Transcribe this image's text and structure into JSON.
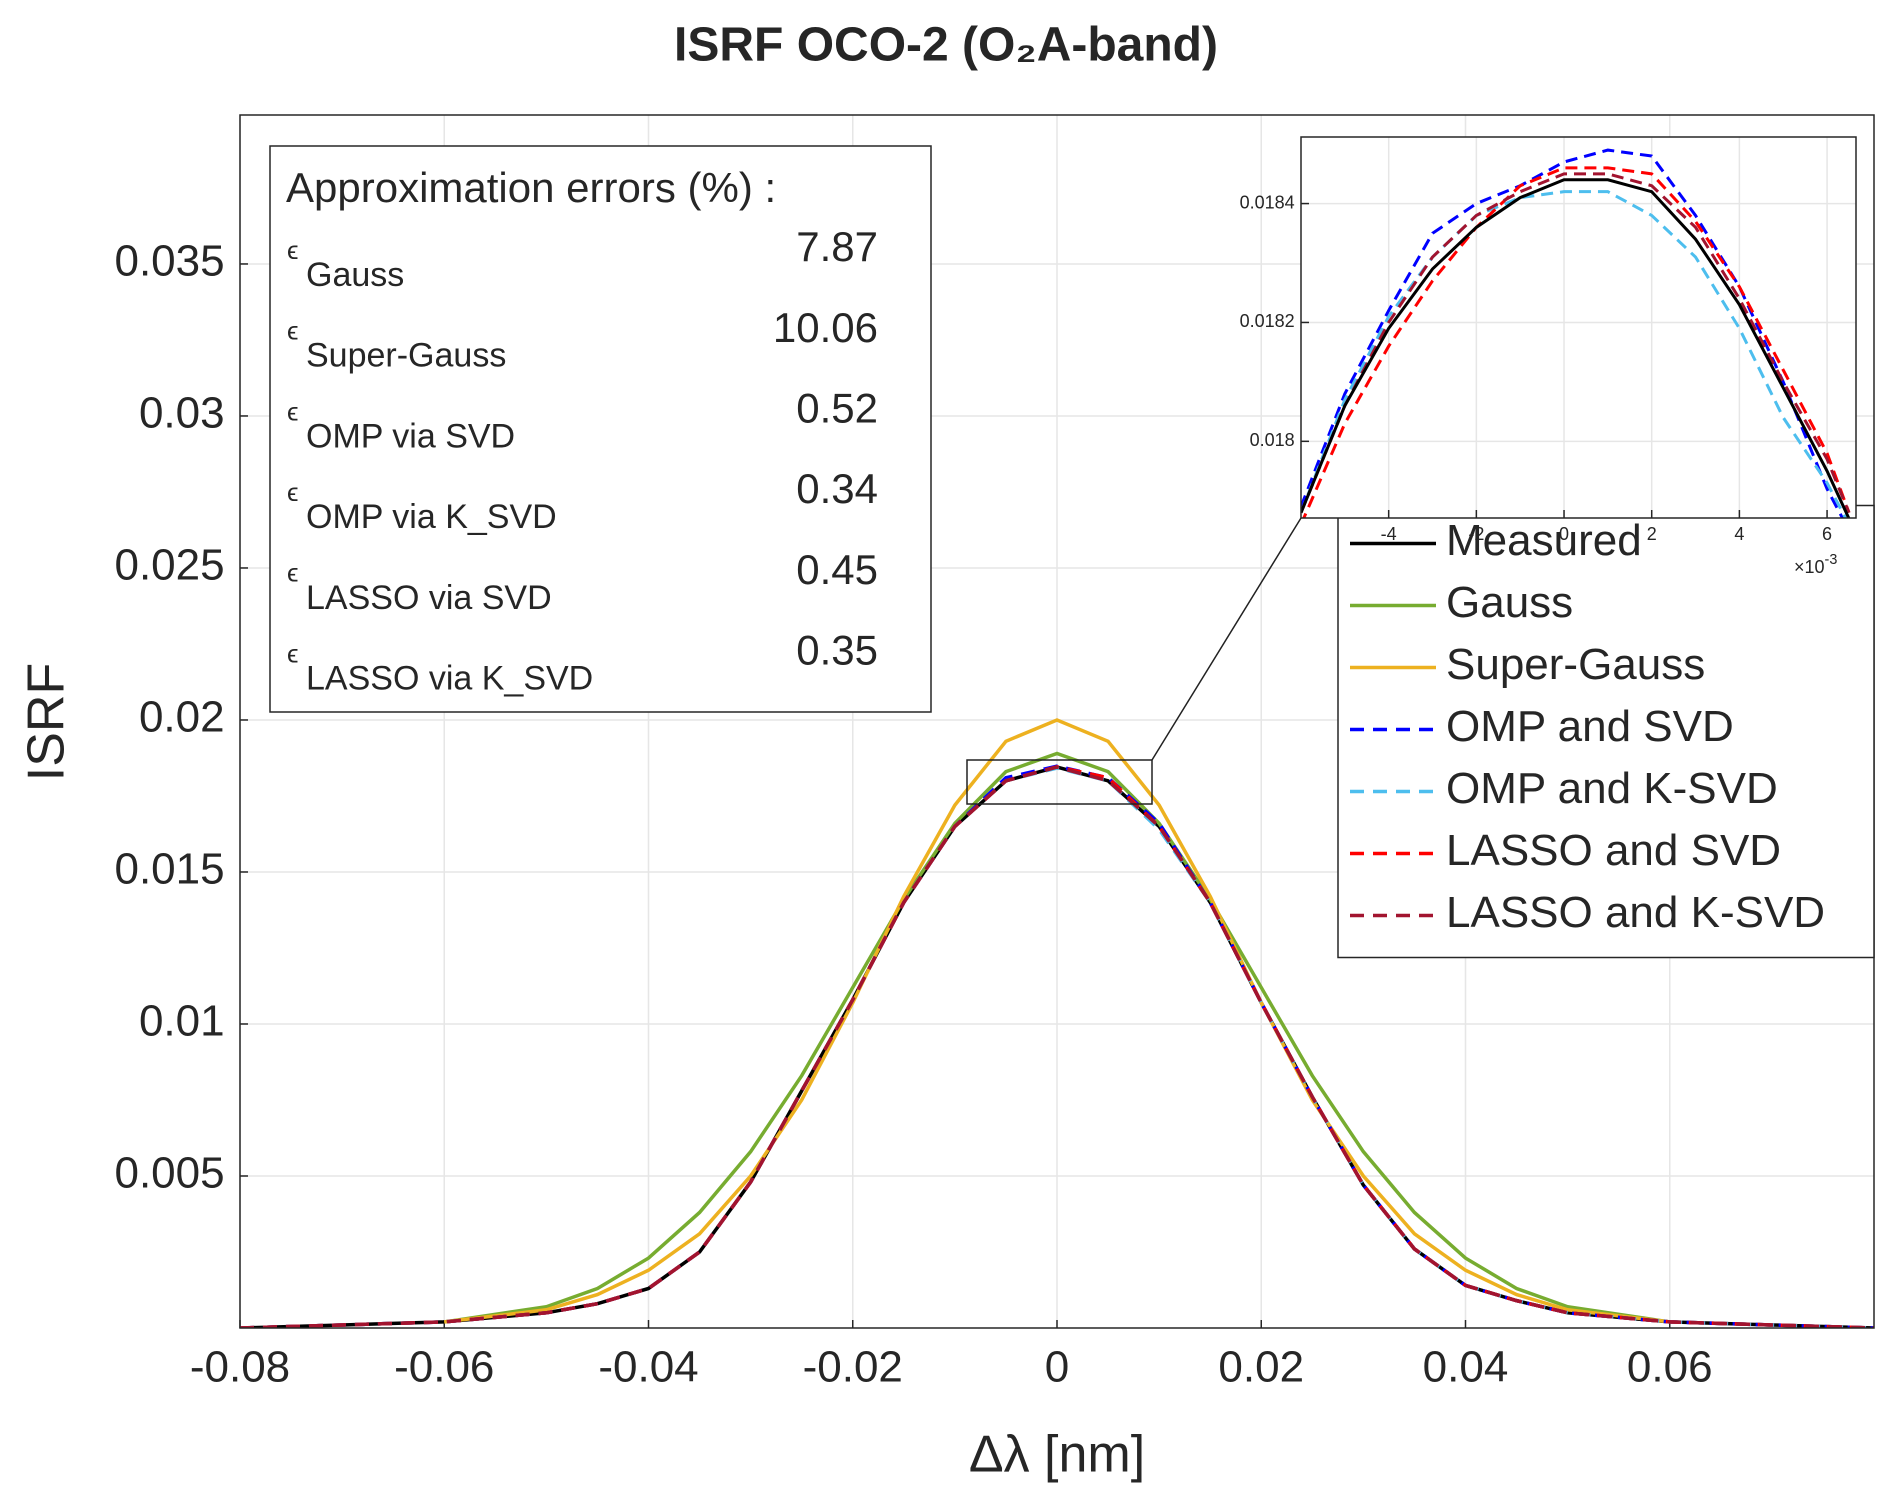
{
  "chart_data": [
    {
      "type": "line",
      "title": "ISRF OCO-2 (O₂A-band)",
      "xlabel": "Δλ [nm]",
      "ylabel": "ISRF",
      "x": [
        -0.08,
        -0.07,
        -0.06,
        -0.05,
        -0.045,
        -0.04,
        -0.035,
        -0.03,
        -0.025,
        -0.02,
        -0.015,
        -0.01,
        -0.005,
        0,
        0.005,
        0.01,
        0.015,
        0.02,
        0.025,
        0.03,
        0.035,
        0.04,
        0.045,
        0.05,
        0.06,
        0.07,
        0.08
      ],
      "series": [
        {
          "name": "Measured",
          "color": "#000000",
          "style": "solid",
          "values": [
            0.0,
            0.0001,
            0.0002,
            0.0005,
            0.0008,
            0.0013,
            0.0025,
            0.0048,
            0.0078,
            0.0108,
            0.014,
            0.0165,
            0.018,
            0.01845,
            0.018,
            0.0165,
            0.014,
            0.0107,
            0.0076,
            0.0047,
            0.0026,
            0.0014,
            0.0009,
            0.0005,
            0.0002,
            0.0001,
            0.0
          ]
        },
        {
          "name": "Gauss",
          "color": "#77ac30",
          "style": "solid",
          "values": [
            null,
            null,
            0.0002,
            0.0007,
            0.0013,
            0.0023,
            0.0038,
            0.0058,
            0.0083,
            0.0112,
            0.0141,
            0.0166,
            0.0183,
            0.0189,
            0.0183,
            0.0166,
            0.0141,
            0.0112,
            0.0083,
            0.0058,
            0.0038,
            0.0023,
            0.0013,
            0.0007,
            0.0002,
            null,
            null
          ]
        },
        {
          "name": "Super-Gauss",
          "color": "#edb120",
          "style": "solid",
          "values": [
            null,
            null,
            0.0002,
            0.0006,
            0.0011,
            0.0019,
            0.0031,
            0.005,
            0.0075,
            0.0107,
            0.0142,
            0.0172,
            0.0193,
            0.02,
            0.0193,
            0.0172,
            0.0142,
            0.0107,
            0.0075,
            0.005,
            0.0031,
            0.0019,
            0.0011,
            0.0006,
            0.0002,
            null,
            null
          ]
        },
        {
          "name": "OMP and SVD",
          "color": "#0000ff",
          "style": "dashed",
          "values": [
            0.0,
            0.0001,
            0.0002,
            0.0005,
            0.0008,
            0.0013,
            0.0025,
            0.0048,
            0.0078,
            0.0108,
            0.014,
            0.0165,
            0.0181,
            0.01848,
            0.0181,
            0.0166,
            0.014,
            0.0107,
            0.0076,
            0.0047,
            0.0026,
            0.0014,
            0.0009,
            0.0005,
            0.0002,
            0.0001,
            0.0
          ]
        },
        {
          "name": "OMP and K-SVD",
          "color": "#4dbeee",
          "style": "dashed",
          "values": [
            0.0,
            0.0001,
            0.0002,
            0.0005,
            0.0008,
            0.0013,
            0.0025,
            0.0048,
            0.0078,
            0.0108,
            0.014,
            0.0165,
            0.018,
            0.01842,
            0.018,
            0.0164,
            0.014,
            0.0107,
            0.0076,
            0.0047,
            0.0026,
            0.0014,
            0.0009,
            0.0005,
            0.0002,
            0.0001,
            0.0
          ]
        },
        {
          "name": "LASSO and SVD",
          "color": "#ff0000",
          "style": "dashed",
          "values": [
            0.0,
            0.0001,
            0.0002,
            0.0005,
            0.0008,
            0.0013,
            0.0025,
            0.0048,
            0.0078,
            0.0108,
            0.014,
            0.0165,
            0.018,
            0.01846,
            0.0181,
            0.0165,
            0.014,
            0.0107,
            0.0076,
            0.0047,
            0.0026,
            0.0014,
            0.0009,
            0.0005,
            0.0002,
            0.0001,
            0.0
          ]
        },
        {
          "name": "LASSO and K-SVD",
          "color": "#a2142f",
          "style": "dashed",
          "values": [
            0.0,
            0.0001,
            0.0002,
            0.0005,
            0.0008,
            0.0013,
            0.0025,
            0.0048,
            0.0078,
            0.0108,
            0.014,
            0.0165,
            0.018,
            0.01845,
            0.018,
            0.0165,
            0.014,
            0.0107,
            0.0076,
            0.0047,
            0.0026,
            0.0014,
            0.0009,
            0.0005,
            0.0002,
            0.0001,
            0.0
          ]
        }
      ],
      "xlim": [
        -0.08,
        0.08
      ],
      "ylim": [
        0,
        0.0399
      ],
      "xticks": [
        -0.08,
        -0.06,
        -0.04,
        -0.02,
        0,
        0.02,
        0.04,
        0.06
      ],
      "yticks": [
        0.005,
        0.01,
        0.015,
        0.02,
        0.025,
        0.03,
        0.035
      ],
      "grid": true,
      "legend": "right",
      "annotation": {
        "title": "Approximation errors (%) :",
        "symbol": "ϵ",
        "items": [
          {
            "label": "Gauss",
            "value": 7.87
          },
          {
            "label": "Super-Gauss",
            "value": 10.06
          },
          {
            "label": "OMP via SVD",
            "value": 0.52
          },
          {
            "label": "OMP via K_SVD",
            "value": 0.34
          },
          {
            "label": "LASSO via SVD",
            "value": 0.45
          },
          {
            "label": "LASSO via K_SVD",
            "value": 0.35
          }
        ]
      }
    },
    {
      "type": "line",
      "x": [
        -0.006,
        -0.005,
        -0.004,
        -0.003,
        -0.002,
        -0.001,
        0,
        0.001,
        0.002,
        0.003,
        0.004,
        0.005,
        0.006,
        0.0065
      ],
      "series": [
        {
          "color": "#0000ff",
          "style": "dashed",
          "values": [
            0.01789,
            0.01808,
            0.01822,
            0.01835,
            0.0184,
            0.01843,
            0.01847,
            0.01849,
            0.01848,
            0.01838,
            0.01826,
            0.0181,
            0.01792,
            0.01785
          ]
        },
        {
          "color": "#4dbeee",
          "style": "dashed",
          "values": [
            0.01788,
            0.01807,
            0.01821,
            0.01831,
            0.01838,
            0.01841,
            0.01842,
            0.01842,
            0.01838,
            0.01831,
            0.01819,
            0.01804,
            0.01793,
            0.01786
          ]
        },
        {
          "color": "#ff0000",
          "style": "dashed",
          "values": [
            0.01786,
            0.01803,
            0.01816,
            0.01827,
            0.01836,
            0.01843,
            0.01846,
            0.01846,
            0.01845,
            0.01837,
            0.01826,
            0.01812,
            0.01798,
            0.01788
          ]
        },
        {
          "color": "#a2142f",
          "style": "dashed",
          "values": [
            0.01788,
            0.01806,
            0.0182,
            0.01831,
            0.01838,
            0.01842,
            0.01845,
            0.01845,
            0.01843,
            0.01836,
            0.01824,
            0.0181,
            0.01797,
            0.01788
          ]
        },
        {
          "color": "#000000",
          "style": "solid",
          "values": [
            0.01788,
            0.01806,
            0.01819,
            0.01829,
            0.01836,
            0.01841,
            0.01844,
            0.01844,
            0.01842,
            0.01834,
            0.01823,
            0.01809,
            0.01795,
            0.01787
          ]
        }
      ],
      "xlim": [
        -0.006,
        0.00666
      ],
      "ylim": [
        0.017871,
        0.018512
      ],
      "xticks": [
        {
          "value": -0.004,
          "label": "-4"
        },
        {
          "value": -0.002,
          "label": "-2"
        },
        {
          "value": 0,
          "label": "0"
        },
        {
          "value": 0.002,
          "label": "2"
        },
        {
          "value": 0.004,
          "label": "4"
        },
        {
          "value": 0.006,
          "label": "6"
        }
      ],
      "yticks": [
        0.018,
        0.0182,
        0.0184
      ],
      "x_multiplier": {
        "base": "×10",
        "power": "-3"
      },
      "grid": true
    }
  ]
}
